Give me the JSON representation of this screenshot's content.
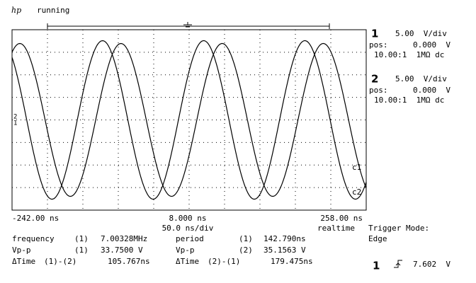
{
  "header": {
    "logo": "hp",
    "status": "running"
  },
  "channels": [
    {
      "number": "1",
      "scale": "5.00  V/div",
      "pos_label": "pos:",
      "pos": "0.000  V",
      "probe": "10.00:1  1MΩ dc"
    },
    {
      "number": "2",
      "scale": "5.00  V/div",
      "pos_label": "pos:",
      "pos": "0.000  V",
      "probe": "10.00:1  1MΩ dc"
    }
  ],
  "timebase": {
    "left": "-242.00 ns",
    "center": "8.000 ns",
    "right": "258.00 ns",
    "scale": "50.0 ns/div"
  },
  "acquisition": "realtime",
  "trigger": {
    "mode_label": "Trigger Mode:",
    "mode": "Edge",
    "source": "1",
    "level": "7.602  V"
  },
  "measurements": [
    [
      {
        "name": "frequency",
        "source": "(1)",
        "value": "7.00328MHz"
      },
      {
        "name": "period",
        "source": "(1)",
        "value": "142.790ns"
      }
    ],
    [
      {
        "name": "Vp-p",
        "source": "(1)",
        "value": "33.7500 V"
      },
      {
        "name": "Vp-p",
        "source": "(2)",
        "value": "35.1563 V"
      }
    ],
    [
      {
        "name": "ΔTime",
        "source": "(1)-(2)",
        "value": "105.767ns"
      },
      {
        "name": "ΔTime",
        "source": "(2)-(1)",
        "value": "179.475ns"
      }
    ]
  ],
  "trace_labels": [
    "c1",
    "c2"
  ],
  "ground_markers": [
    "1",
    "2"
  ]
}
